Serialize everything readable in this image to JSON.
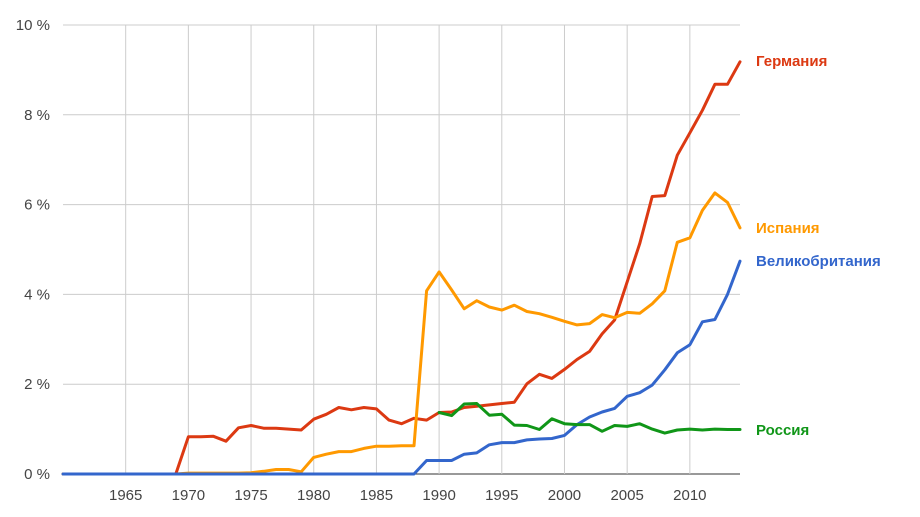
{
  "chart_data": {
    "type": "line",
    "title": "",
    "xlabel": "",
    "ylabel": "",
    "xlim": [
      1960,
      2014
    ],
    "ylim": [
      0,
      10
    ],
    "grid": true,
    "legend_placement": "right, inline at line ends",
    "x_ticks": [
      1965,
      1970,
      1975,
      1980,
      1985,
      1990,
      1995,
      2000,
      2005,
      2010
    ],
    "x_tick_labels": [
      "1965",
      "1970",
      "1975",
      "1980",
      "1985",
      "1990",
      "1995",
      "2000",
      "2005",
      "2010"
    ],
    "y_ticks": [
      0,
      2,
      4,
      6,
      8,
      10
    ],
    "y_tick_labels": [
      "0 %",
      "2 %",
      "4 %",
      "6 %",
      "8 %",
      "10 %"
    ],
    "x": [
      1960,
      1961,
      1962,
      1963,
      1964,
      1965,
      1966,
      1967,
      1968,
      1969,
      1970,
      1971,
      1972,
      1973,
      1974,
      1975,
      1976,
      1977,
      1978,
      1979,
      1980,
      1981,
      1982,
      1983,
      1984,
      1985,
      1986,
      1987,
      1988,
      1989,
      1990,
      1991,
      1992,
      1993,
      1994,
      1995,
      1996,
      1997,
      1998,
      1999,
      2000,
      2001,
      2002,
      2003,
      2004,
      2005,
      2006,
      2007,
      2008,
      2009,
      2010,
      2011,
      2012,
      2013,
      2014
    ],
    "series": [
      {
        "name": "Германия",
        "color": "#dc3912",
        "values": [
          0,
          0,
          0,
          0,
          0,
          0,
          0,
          0,
          0,
          0,
          0.83,
          0.83,
          0.84,
          0.73,
          1.03,
          1.08,
          1.02,
          1.02,
          1.0,
          0.98,
          1.22,
          1.33,
          1.48,
          1.43,
          1.48,
          1.45,
          1.2,
          1.12,
          1.24,
          1.2,
          1.37,
          1.38,
          1.48,
          1.51,
          1.54,
          1.57,
          1.6,
          2.01,
          2.22,
          2.13,
          2.33,
          2.55,
          2.73,
          3.12,
          3.43,
          4.28,
          5.13,
          6.18,
          6.2,
          7.1,
          7.6,
          8.1,
          8.68,
          8.68,
          9.18
        ]
      },
      {
        "name": "Испания",
        "color": "#ff9900",
        "values": [
          0,
          0,
          0,
          0,
          0,
          0,
          0,
          0,
          0,
          0,
          0.02,
          0.02,
          0.02,
          0.02,
          0.02,
          0.03,
          0.06,
          0.1,
          0.1,
          0.05,
          0.37,
          0.44,
          0.5,
          0.5,
          0.57,
          0.62,
          0.62,
          0.63,
          0.63,
          4.08,
          4.5,
          4.1,
          3.68,
          3.86,
          3.72,
          3.65,
          3.76,
          3.62,
          3.57,
          3.49,
          3.4,
          3.32,
          3.35,
          3.55,
          3.48,
          3.6,
          3.58,
          3.79,
          4.08,
          5.16,
          5.26,
          5.87,
          6.26,
          6.05,
          5.48
        ]
      },
      {
        "name": "Великобритания",
        "color": "#3366cc",
        "values": [
          0,
          0,
          0,
          0,
          0,
          0,
          0,
          0,
          0,
          0,
          0,
          0,
          0,
          0,
          0,
          0,
          0,
          0,
          0,
          0,
          0,
          0,
          0,
          0,
          0,
          0,
          0,
          0,
          0,
          0.3,
          0.3,
          0.3,
          0.44,
          0.47,
          0.65,
          0.7,
          0.7,
          0.76,
          0.78,
          0.79,
          0.86,
          1.1,
          1.27,
          1.38,
          1.46,
          1.73,
          1.81,
          1.98,
          2.32,
          2.7,
          2.88,
          3.39,
          3.44,
          4.0,
          4.74
        ]
      },
      {
        "name": "Россия",
        "color": "#109618",
        "values": [
          null,
          null,
          null,
          null,
          null,
          null,
          null,
          null,
          null,
          null,
          null,
          null,
          null,
          null,
          null,
          null,
          null,
          null,
          null,
          null,
          null,
          null,
          null,
          null,
          null,
          null,
          null,
          null,
          null,
          null,
          1.37,
          1.3,
          1.56,
          1.57,
          1.31,
          1.33,
          1.09,
          1.08,
          0.99,
          1.23,
          1.12,
          1.1,
          1.1,
          0.95,
          1.08,
          1.06,
          1.12,
          1.0,
          0.91,
          0.98,
          1.0,
          0.98,
          1.0,
          0.99,
          0.99
        ]
      }
    ]
  }
}
